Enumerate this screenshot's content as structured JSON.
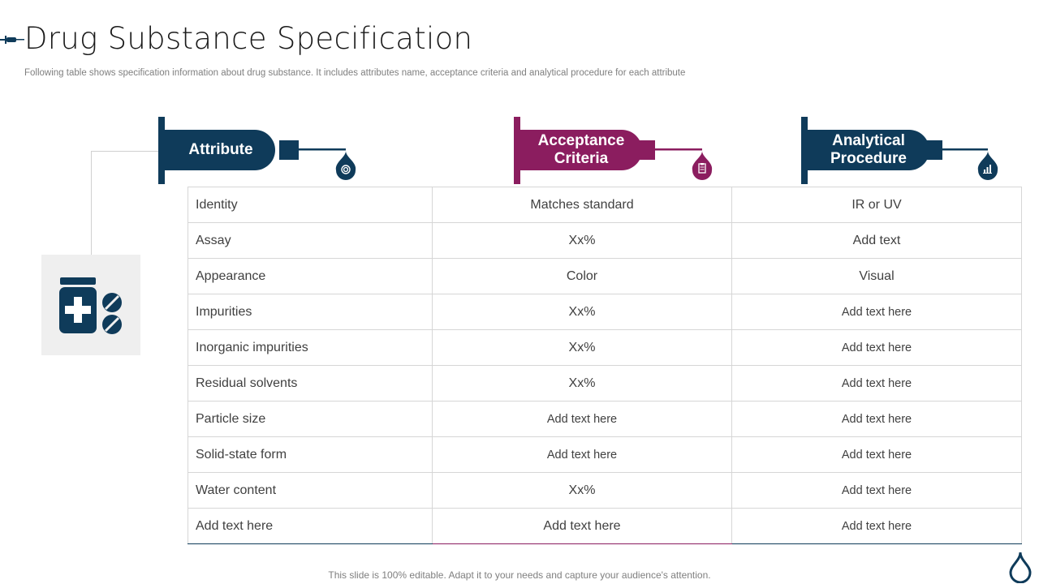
{
  "header": {
    "title": "Drug Substance Specification",
    "subtitle": "Following table shows specification information about drug substance. It includes attributes name, acceptance criteria and analytical procedure for each attribute"
  },
  "colors": {
    "navy": "#0f3b5a",
    "plum": "#8b1d5f",
    "gray_panel": "#efefef"
  },
  "columns": [
    {
      "label": "Attribute",
      "color": "#0f3b5a",
      "icon": "target-icon"
    },
    {
      "label": "Acceptance\nCriteria",
      "color": "#8b1d5f",
      "icon": "clipboard-icon"
    },
    {
      "label": "Analytical\nProcedure",
      "color": "#0f3b5a",
      "icon": "bar-chart-icon"
    }
  ],
  "rows": [
    [
      "Identity",
      "Matches standard",
      "IR or UV"
    ],
    [
      "Assay",
      "Xx%",
      "Add text"
    ],
    [
      "Appearance",
      "Color",
      "Visual"
    ],
    [
      "Impurities",
      "Xx%",
      "Add text here"
    ],
    [
      "Inorganic impurities",
      "Xx%",
      "Add text here"
    ],
    [
      "Residual solvents",
      "Xx%",
      "Add text here"
    ],
    [
      "Particle size",
      "Add text here",
      "Add text here"
    ],
    [
      "Solid-state form",
      "Add text here",
      "Add text here"
    ],
    [
      "Water content",
      "Xx%",
      "Add text here"
    ],
    [
      "Add text here",
      "Add text here",
      "Add text here"
    ]
  ],
  "footer": "This slide is 100% editable. Adapt it to your needs and capture your audience's attention."
}
